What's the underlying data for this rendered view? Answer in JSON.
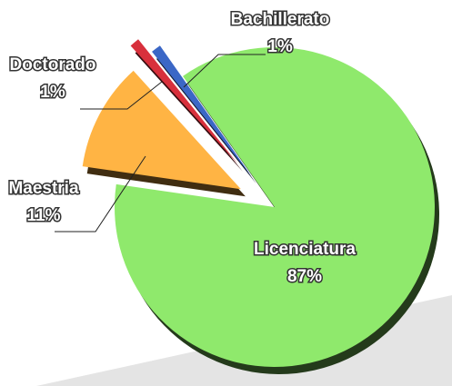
{
  "chart_data": {
    "type": "pie",
    "categories": [
      "Licenciatura",
      "Maestria",
      "Doctorado",
      "Bachillerato"
    ],
    "values": [
      87,
      11,
      1,
      1
    ],
    "value_labels": [
      "87%",
      "11%",
      "1%",
      "1%"
    ],
    "colors": [
      "#8fe96c",
      "#ffb444",
      "#d8303c",
      "#3b67c6"
    ]
  }
}
